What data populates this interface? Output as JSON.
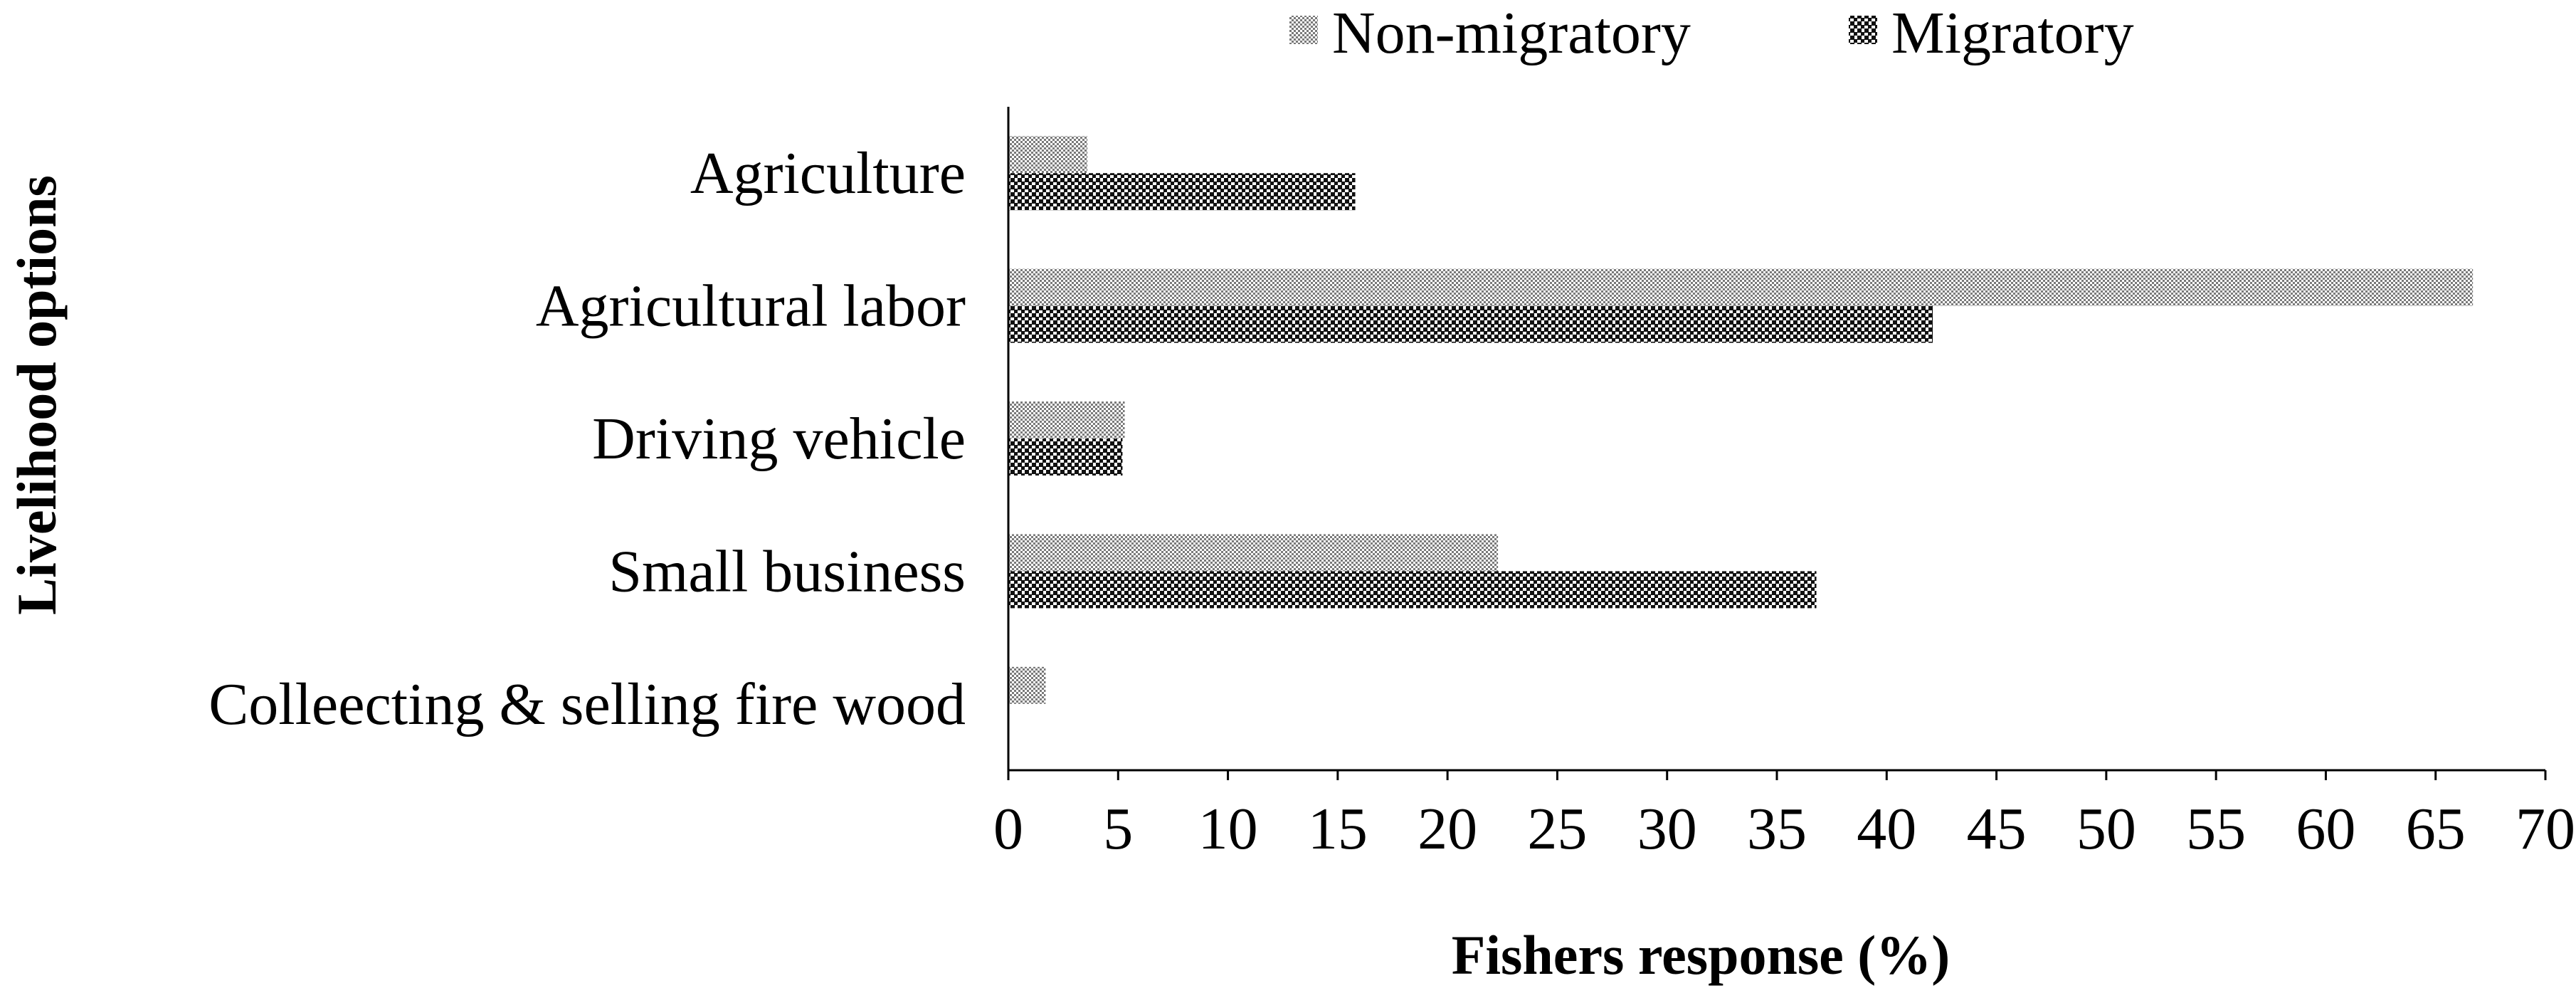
{
  "chart_data": {
    "type": "bar",
    "orientation": "horizontal",
    "categories": [
      "Agriculture",
      "Agricultural labor",
      "Driving vehicle",
      "Small business",
      "Colleecting & selling fire wood"
    ],
    "series": [
      {
        "name": "Non-migratory",
        "values": [
          3.6,
          66.7,
          5.3,
          22.3,
          1.7
        ],
        "pattern": "fine-dot",
        "color": "#9a9a9a"
      },
      {
        "name": "Migratory",
        "values": [
          15.8,
          42.1,
          5.2,
          36.8,
          0
        ],
        "pattern": "checker",
        "color": "#1a1a1a"
      }
    ],
    "xlabel": "Fishers response (%)",
    "ylabel": "Livelihood options",
    "xlim": [
      0,
      70
    ],
    "xticks": [
      0,
      5,
      10,
      15,
      20,
      25,
      30,
      35,
      40,
      45,
      50,
      55,
      60,
      65,
      70
    ],
    "grid": false,
    "legend_position": "top"
  }
}
